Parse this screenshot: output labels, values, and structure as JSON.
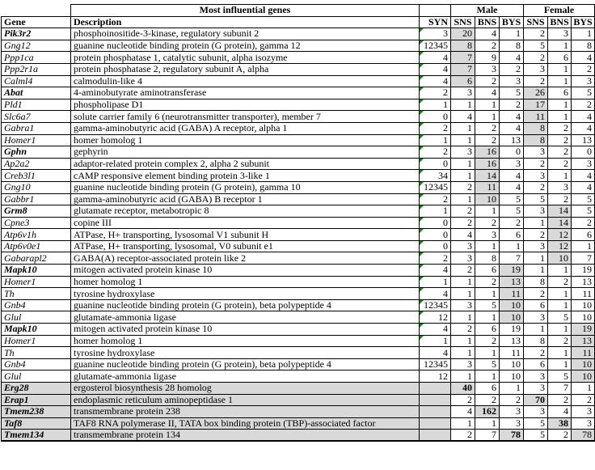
{
  "table": {
    "title": "Most influential genes",
    "groups": {
      "male": "Male",
      "female": "Female"
    },
    "columns": {
      "gene": "Gene",
      "description": "Description",
      "syn": "SYN",
      "sns": "SNS",
      "bns": "BNS",
      "bys": "BYS"
    },
    "highlight_color": "#d9d9d9",
    "flag_color": "#0f8a0f",
    "rows": [
      {
        "gene": "Pik3r2",
        "bold": true,
        "desc": "phosphoinositide-3-kinase, regulatory subunit 2",
        "syn": "3",
        "flag": true,
        "values": [
          20,
          4,
          1,
          2,
          3,
          1
        ],
        "hl": [
          0
        ]
      },
      {
        "gene": "Gng12",
        "bold": false,
        "desc": "guanine nucleotide binding protein (G protein), gamma 12",
        "syn": "12345",
        "flag": true,
        "values": [
          8,
          2,
          8,
          5,
          1,
          8
        ],
        "hl": [
          0
        ]
      },
      {
        "gene": "Ppp1ca",
        "bold": false,
        "desc": "protein phosphatase 1, catalytic subunit, alpha isozyme",
        "syn": "4",
        "flag": true,
        "values": [
          7,
          9,
          4,
          2,
          6,
          4
        ],
        "hl": [
          0
        ]
      },
      {
        "gene": "Ppp2r1a",
        "bold": false,
        "desc": "protein phosphatase 2, regulatory subunit A, alpha",
        "syn": "4",
        "flag": true,
        "values": [
          7,
          3,
          2,
          3,
          1,
          2
        ],
        "hl": [
          0
        ]
      },
      {
        "gene": "Calml4",
        "bold": false,
        "desc": "calmodulin-like 4",
        "syn": "4",
        "flag": true,
        "values": [
          6,
          2,
          3,
          2,
          1,
          3
        ],
        "hl": [
          0
        ]
      },
      {
        "gene": "Abat",
        "bold": true,
        "desc": "4-aminobutyrate aminotransferase",
        "syn": "2",
        "flag": true,
        "values": [
          3,
          4,
          5,
          26,
          6,
          5
        ],
        "hl": [
          3
        ]
      },
      {
        "gene": "Pld1",
        "bold": false,
        "desc": "phospholipase D1",
        "syn": "1",
        "flag": true,
        "values": [
          1,
          1,
          2,
          17,
          1,
          2
        ],
        "hl": [
          3
        ]
      },
      {
        "gene": "Slc6a7",
        "bold": false,
        "desc": "solute carrier family 6 (neurotransmitter transporter), member 7",
        "syn": "0",
        "flag": true,
        "values": [
          4,
          1,
          4,
          11,
          1,
          4
        ],
        "hl": [
          3
        ]
      },
      {
        "gene": "Gabra1",
        "bold": false,
        "desc": "gamma-aminobutyric acid (GABA) A receptor, alpha 1",
        "syn": "2",
        "flag": true,
        "values": [
          1,
          2,
          4,
          8,
          2,
          4
        ],
        "hl": [
          3
        ]
      },
      {
        "gene": "Homer1",
        "bold": false,
        "desc": "homer homolog 1",
        "syn": "1",
        "flag": true,
        "values": [
          1,
          2,
          13,
          8,
          2,
          13
        ],
        "hl": [
          3
        ]
      },
      {
        "gene": "Gphn",
        "bold": true,
        "desc": "gephyrin",
        "syn": "2",
        "flag": true,
        "values": [
          3,
          16,
          0,
          3,
          2,
          0
        ],
        "hl": [
          1
        ]
      },
      {
        "gene": "Ap2a2",
        "bold": false,
        "desc": "adaptor-related protein complex 2, alpha 2 subunit",
        "syn": "0",
        "flag": true,
        "values": [
          1,
          16,
          3,
          2,
          2,
          3
        ],
        "hl": [
          1
        ]
      },
      {
        "gene": "Creb3l1",
        "bold": false,
        "desc": "cAMP responsive element binding protein 3-like 1",
        "syn": "34",
        "flag": true,
        "values": [
          1,
          14,
          4,
          3,
          1,
          4
        ],
        "hl": [
          1
        ]
      },
      {
        "gene": "Gng10",
        "bold": false,
        "desc": "guanine nucleotide binding protein (G protein), gamma 10",
        "syn": "12345",
        "flag": true,
        "values": [
          2,
          11,
          4,
          2,
          3,
          4
        ],
        "hl": [
          1
        ]
      },
      {
        "gene": "Gabbr1",
        "bold": false,
        "desc": "gamma-aminobutyric acid (GABA) B receptor 1",
        "syn": "2",
        "flag": true,
        "values": [
          1,
          10,
          5,
          5,
          2,
          5
        ],
        "hl": [
          1
        ]
      },
      {
        "gene": "Grm8",
        "bold": true,
        "desc": "glutamate receptor, metabotropic 8",
        "syn": "1",
        "flag": true,
        "values": [
          2,
          1,
          5,
          3,
          14,
          5
        ],
        "hl": [
          4
        ]
      },
      {
        "gene": "Cpne3",
        "bold": false,
        "desc": "copine III",
        "syn": "0",
        "flag": true,
        "values": [
          2,
          2,
          2,
          1,
          14,
          2
        ],
        "hl": [
          4
        ]
      },
      {
        "gene": "Atp6v1h",
        "bold": false,
        "desc": "ATPase, H+ transporting, lysosomal V1 subunit H",
        "syn": "0",
        "flag": true,
        "values": [
          4,
          3,
          6,
          2,
          12,
          6
        ],
        "hl": [
          4
        ]
      },
      {
        "gene": "Atp6v0e1",
        "bold": false,
        "desc": "ATPase, H+ transporting, lysosomal, V0 subunit e1",
        "syn": "0",
        "flag": true,
        "values": [
          3,
          1,
          1,
          3,
          12,
          1
        ],
        "hl": [
          4
        ]
      },
      {
        "gene": "Gabarapl2",
        "bold": false,
        "desc": "GABA(A) receptor-associated protein like 2",
        "syn": "2",
        "flag": true,
        "values": [
          3,
          8,
          7,
          1,
          10,
          7
        ],
        "hl": [
          4
        ]
      },
      {
        "gene": "Mapk10",
        "bold": true,
        "desc": "mitogen activated protein kinase 10",
        "syn": "4",
        "flag": true,
        "values": [
          2,
          6,
          19,
          1,
          1,
          19
        ],
        "hl": [
          2
        ]
      },
      {
        "gene": "Homer1",
        "bold": false,
        "desc": "homer homolog 1",
        "syn": "1",
        "flag": true,
        "values": [
          1,
          2,
          13,
          8,
          2,
          13
        ],
        "hl": [
          2
        ]
      },
      {
        "gene": "Th",
        "bold": false,
        "desc": "tyrosine hydroxylase",
        "syn": "4",
        "flag": true,
        "values": [
          1,
          1,
          11,
          2,
          1,
          11
        ],
        "hl": [
          2
        ]
      },
      {
        "gene": "Gnb4",
        "bold": false,
        "desc": "guanine nucleotide binding protein (G protein), beta polypeptide 4",
        "syn": "12345",
        "flag": true,
        "values": [
          3,
          5,
          10,
          6,
          1,
          10
        ],
        "hl": [
          2
        ]
      },
      {
        "gene": "Glul",
        "bold": false,
        "desc": "glutamate-ammonia ligase",
        "syn": "12",
        "flag": true,
        "values": [
          1,
          1,
          10,
          3,
          5,
          10
        ],
        "hl": [
          2
        ]
      },
      {
        "gene": "Mapk10",
        "bold": true,
        "desc": "mitogen activated protein kinase 10",
        "syn": "4",
        "flag": true,
        "values": [
          2,
          6,
          19,
          1,
          1,
          19
        ],
        "hl": [
          5
        ]
      },
      {
        "gene": "Homer1",
        "bold": false,
        "desc": "homer homolog 1",
        "syn": "1",
        "flag": true,
        "values": [
          1,
          2,
          13,
          8,
          2,
          13
        ],
        "hl": [
          5
        ]
      },
      {
        "gene": "Th",
        "bold": false,
        "desc": "tyrosine hydroxylase",
        "syn": "4",
        "flag": false,
        "values": [
          1,
          1,
          11,
          2,
          1,
          11
        ],
        "hl": [
          5
        ]
      },
      {
        "gene": "Gnb4",
        "bold": false,
        "desc": "guanine nucleotide binding protein (G protein), beta polypeptide 4",
        "syn": "12345",
        "flag": false,
        "values": [
          3,
          5,
          10,
          6,
          1,
          10
        ],
        "hl": [
          5
        ]
      },
      {
        "gene": "Glul",
        "bold": false,
        "desc": "glutamate-ammonia ligase",
        "syn": "12",
        "flag": false,
        "values": [
          1,
          1,
          10,
          3,
          5,
          10
        ],
        "hl": [
          5
        ]
      },
      {
        "gene": "Erg28",
        "bold": true,
        "shaded": true,
        "desc": "ergosterol biosynthesis 28 homolog",
        "syn": "",
        "flag": false,
        "values": [
          40,
          6,
          1,
          3,
          7,
          1
        ],
        "hl": [
          0
        ],
        "bold_values": [
          0
        ]
      },
      {
        "gene": "Erap1",
        "bold": true,
        "shaded": true,
        "desc": "endoplasmic reticulum aminopeptidase 1",
        "syn": "",
        "flag": false,
        "values": [
          2,
          2,
          2,
          70,
          2,
          2
        ],
        "hl": [
          3
        ],
        "bold_values": [
          3
        ]
      },
      {
        "gene": "Tmem238",
        "bold": true,
        "shaded": true,
        "desc": "transmembrane protein 238",
        "syn": "",
        "flag": false,
        "values": [
          4,
          162,
          3,
          3,
          4,
          3
        ],
        "hl": [
          1
        ],
        "bold_values": [
          1
        ]
      },
      {
        "gene": "Taf8",
        "bold": true,
        "shaded": true,
        "desc": "TAF8 RNA polymerase II, TATA box binding protein (TBP)-associated factor",
        "syn": "",
        "flag": false,
        "values": [
          1,
          1,
          3,
          5,
          38,
          3
        ],
        "hl": [
          4
        ],
        "bold_values": [
          4
        ]
      },
      {
        "gene": "Tmem134",
        "bold": true,
        "shaded": true,
        "desc": "transmembrane protein 134",
        "syn": "",
        "flag": false,
        "values": [
          2,
          7,
          78,
          5,
          2,
          78
        ],
        "hl": [
          2,
          5
        ],
        "bold_values": [
          2
        ]
      }
    ]
  }
}
